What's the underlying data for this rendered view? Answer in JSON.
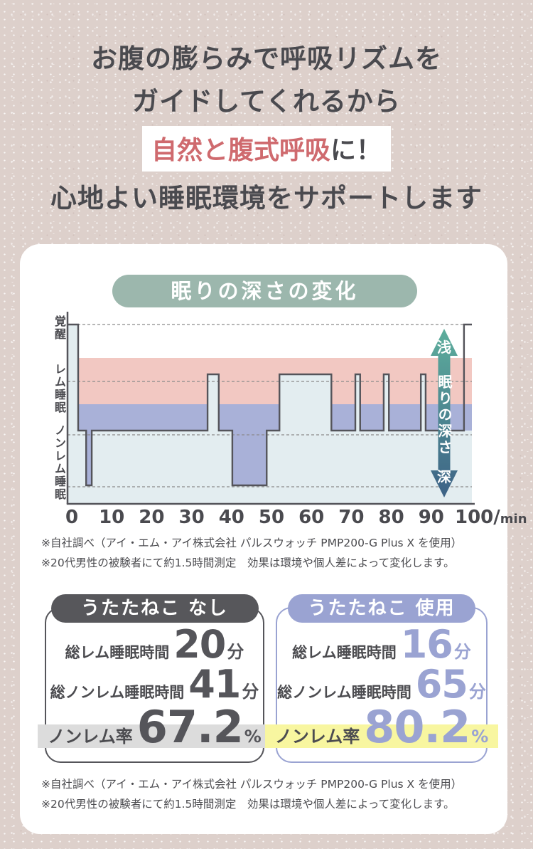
{
  "headline": {
    "line1": "お腹の膨らみで呼吸リズムを",
    "line2": "ガイドしてくれるから",
    "highlight_emphasis": "自然と腹式呼吸",
    "highlight_suffix": "に！",
    "line3": "心地よい睡眠環境をサポートします"
  },
  "chart_data": {
    "type": "area",
    "title": "眠りの深さの変化",
    "x_ticks": [
      0,
      10,
      20,
      30,
      40,
      50,
      60,
      70,
      80,
      90
    ],
    "x_last_tick": {
      "label": "100",
      "slash": "/",
      "unit": "min"
    },
    "x_range": [
      0,
      100
    ],
    "xlabel": "min",
    "y_zone_labels": [
      "覚醒",
      "レム睡眠",
      "ノンレム睡眠"
    ],
    "depth_arrow": {
      "top_label": "浅",
      "middle_label": "眠りの深さ",
      "bottom_label": "深"
    },
    "stages_order_shallow_to_deep": [
      "wake",
      "rem",
      "light",
      "deep"
    ],
    "grid": "dashed horizontal lines at wake / REM / non-REM / deep levels",
    "segments": [
      {
        "stage": "wake",
        "from": 0,
        "to": 1.6
      },
      {
        "stage": "light",
        "from": 1.6,
        "to": 3.6
      },
      {
        "stage": "deep",
        "from": 3.6,
        "to": 5.0
      },
      {
        "stage": "light",
        "from": 5.0,
        "to": 34.0
      },
      {
        "stage": "rem",
        "from": 34.0,
        "to": 36.8
      },
      {
        "stage": "light",
        "from": 36.8,
        "to": 40.2
      },
      {
        "stage": "deep",
        "from": 40.2,
        "to": 48.8
      },
      {
        "stage": "light",
        "from": 48.8,
        "to": 52.0
      },
      {
        "stage": "rem",
        "from": 52.0,
        "to": 65.0
      },
      {
        "stage": "light",
        "from": 65.0,
        "to": 71.0
      },
      {
        "stage": "rem",
        "from": 71.0,
        "to": 72.2
      },
      {
        "stage": "light",
        "from": 72.2,
        "to": 78.1
      },
      {
        "stage": "rem",
        "from": 78.1,
        "to": 79.4
      },
      {
        "stage": "light",
        "from": 79.4,
        "to": 87.4
      },
      {
        "stage": "rem",
        "from": 87.4,
        "to": 88.6
      },
      {
        "stage": "light",
        "from": 88.6,
        "to": 98.2
      },
      {
        "stage": "wake",
        "from": 98.2,
        "to": 100.4
      }
    ]
  },
  "footnote": {
    "line1": "※自社調べ（アイ・エム・アイ株式会社 パルスウォッチ PMP200-G Plus X を使用）",
    "line2": "※20代男性の被験者にて約1.5時間測定　効果は環境や個人差によって変化します。"
  },
  "comparison": {
    "without": {
      "header": "うたたねこ なし",
      "rows": [
        {
          "label": "総レム睡眠時間",
          "value": "20",
          "unit": "分"
        },
        {
          "label": "総ノンレム睡眠時間",
          "value": "41",
          "unit": "分"
        },
        {
          "label": "ノンレム率",
          "value": "67.2",
          "unit": "%"
        }
      ]
    },
    "with": {
      "header": "うたたねこ 使用",
      "rows": [
        {
          "label": "総レム睡眠時間",
          "value": "16",
          "unit": "分"
        },
        {
          "label": "総ノンレム睡眠時間",
          "value": "65",
          "unit": "分"
        },
        {
          "label": "ノンレム率",
          "value": "80.2",
          "unit": "%"
        }
      ]
    }
  },
  "colors": {
    "accent_pink_text": "#cf6a6e",
    "green_pill": "#9cb7ad",
    "band_pink": "#f2c8c2",
    "band_purple": "#a9b1d8",
    "band_pale": "#e3edf0",
    "line_stroke": "#54545a",
    "arrow_top": "#5dae9c",
    "arrow_bottom": "#3d6286",
    "dark_pill": "#57575b",
    "purple_theme": "#9aa3d2",
    "yellow_highlight": "#f8f6a0",
    "gray_highlight": "#dcdcdc"
  }
}
